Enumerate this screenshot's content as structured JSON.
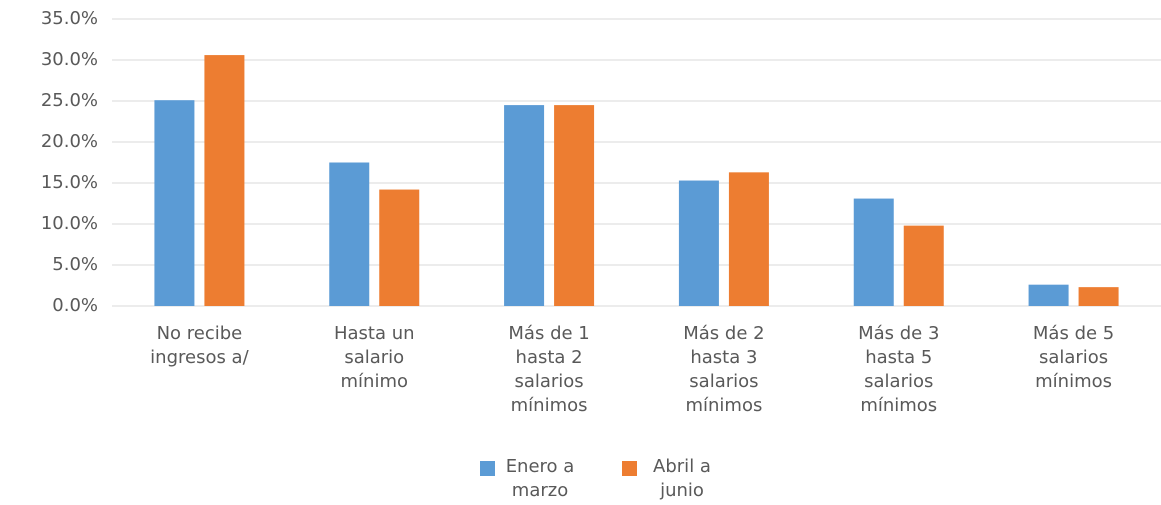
{
  "chart_data": {
    "type": "bar",
    "categories": [
      "No recibe ingresos a/",
      "Hasta un salario mínimo",
      "Más de 1 hasta 2 salarios mínimos",
      "Más de 2 hasta 3 salarios mínimos",
      "Más de 3 hasta 5 salarios mínimos",
      "Más de 5 salarios mínimos"
    ],
    "series": [
      {
        "name": "Enero a marzo",
        "color": "#5b9bd5",
        "values": [
          25.1,
          17.5,
          24.5,
          15.3,
          13.1,
          2.6
        ]
      },
      {
        "name": "Abril a junio",
        "color": "#ed7d31",
        "values": [
          30.6,
          14.2,
          24.5,
          16.3,
          9.8,
          2.3
        ]
      }
    ],
    "ylim": [
      0,
      35
    ],
    "yticks": [
      {
        "value": 0,
        "label": "0.0%"
      },
      {
        "value": 5,
        "label": "5.0%"
      },
      {
        "value": 10,
        "label": "10.0%"
      },
      {
        "value": 15,
        "label": "15.0%"
      },
      {
        "value": 20,
        "label": "20.0%"
      },
      {
        "value": 25,
        "label": "25.0%"
      },
      {
        "value": 30,
        "label": "30.0%"
      },
      {
        "value": 35,
        "label": "35.0%"
      }
    ],
    "grid": true,
    "legend": "bottom"
  }
}
